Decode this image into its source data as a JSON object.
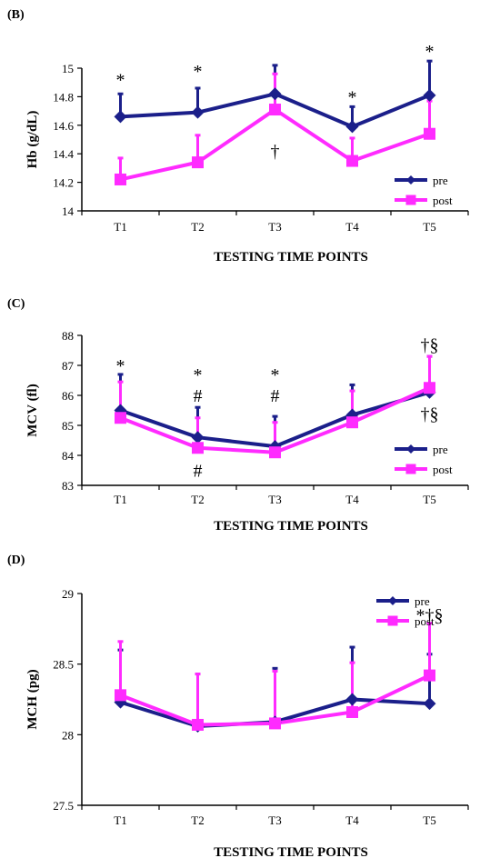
{
  "colors": {
    "pre": "#1b1f8a",
    "post": "#ff2bff",
    "axis": "#000000"
  },
  "chart_data": [
    {
      "type": "line",
      "panel_label": "(B)",
      "xlabel": "TESTING TIME POINTS",
      "ylabel": "Hb (g/dL)",
      "categories": [
        "T1",
        "T2",
        "T3",
        "T4",
        "T5"
      ],
      "ylim": [
        14,
        15
      ],
      "yticks": [
        "14",
        "14.2",
        "14.4",
        "14.6",
        "14.8",
        "15"
      ],
      "yticks_values": [
        14,
        14.2,
        14.4,
        14.6,
        14.8,
        15
      ],
      "legend_position": "bottom-right",
      "series": [
        {
          "name": "pre",
          "marker": "diamond",
          "values": [
            14.66,
            14.69,
            14.82,
            14.59,
            14.81
          ],
          "error": [
            0.16,
            0.17,
            0.2,
            0.14,
            0.24
          ]
        },
        {
          "name": "post",
          "marker": "square",
          "values": [
            14.22,
            14.34,
            14.71,
            14.35,
            14.54
          ],
          "error": [
            0.15,
            0.19,
            0.25,
            0.16,
            0.23
          ]
        }
      ],
      "annotations": [
        {
          "text": "*",
          "category": "T1",
          "y": 14.92
        },
        {
          "text": "*",
          "category": "T2",
          "y": 14.98
        },
        {
          "text": "†",
          "category": "T3",
          "y": 14.42
        },
        {
          "text": "*",
          "category": "T4",
          "y": 14.8
        },
        {
          "text": "*",
          "category": "T5",
          "y": 15.12
        }
      ]
    },
    {
      "type": "line",
      "panel_label": "(C)",
      "xlabel": "TESTING TIME POINTS",
      "ylabel": "MCV (fl)",
      "categories": [
        "T1",
        "T2",
        "T3",
        "T4",
        "T5"
      ],
      "ylim": [
        83,
        88
      ],
      "yticks": [
        "83",
        "84",
        "85",
        "86",
        "87",
        "88"
      ],
      "yticks_values": [
        83,
        84,
        85,
        86,
        87,
        88
      ],
      "legend_position": "bottom-right",
      "series": [
        {
          "name": "pre",
          "marker": "diamond",
          "values": [
            85.5,
            84.6,
            84.3,
            85.35,
            86.1
          ],
          "error": [
            1.2,
            1.0,
            1.0,
            1.0,
            1.2
          ]
        },
        {
          "name": "post",
          "marker": "square",
          "values": [
            85.25,
            84.25,
            84.1,
            85.1,
            86.25
          ],
          "error": [
            1.2,
            1.0,
            1.0,
            1.05,
            1.05
          ]
        }
      ],
      "annotations": [
        {
          "text": "*",
          "category": "T1",
          "y": 87.0
        },
        {
          "text": "*",
          "category": "T2",
          "y": 86.7
        },
        {
          "text": "#",
          "category": "T2",
          "y": 86.0
        },
        {
          "text": "#",
          "category": "T2",
          "y": 83.5
        },
        {
          "text": "*",
          "category": "T3",
          "y": 86.7
        },
        {
          "text": "#",
          "category": "T3",
          "y": 86.0
        },
        {
          "text": "†§",
          "category": "T5",
          "y": 87.7
        },
        {
          "text": "†§",
          "category": "T5",
          "y": 85.4
        }
      ]
    },
    {
      "type": "line",
      "panel_label": "(D)",
      "xlabel": "TESTING TIME POINTS",
      "ylabel": "MCH (pg)",
      "categories": [
        "T1",
        "T2",
        "T3",
        "T4",
        "T5"
      ],
      "ylim": [
        27.5,
        29
      ],
      "yticks": [
        "27.5",
        "28",
        "28.5",
        "29"
      ],
      "yticks_values": [
        27.5,
        28,
        28.5,
        29
      ],
      "legend_position": "top-right",
      "series": [
        {
          "name": "pre",
          "marker": "diamond",
          "values": [
            28.23,
            28.06,
            28.09,
            28.25,
            28.22
          ],
          "error": [
            0.37,
            0.37,
            0.38,
            0.37,
            0.35
          ]
        },
        {
          "name": "post",
          "marker": "square",
          "values": [
            28.28,
            28.07,
            28.08,
            28.16,
            28.42
          ],
          "error": [
            0.38,
            0.36,
            0.37,
            0.35,
            0.37
          ]
        }
      ],
      "annotations": [
        {
          "text": "*†§",
          "category": "T5",
          "y": 28.85
        }
      ]
    }
  ]
}
